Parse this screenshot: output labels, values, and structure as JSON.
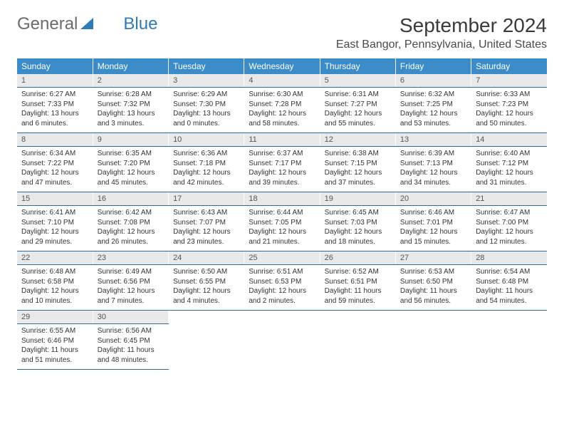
{
  "brand": {
    "part1": "General",
    "part2": "Blue"
  },
  "title": "September 2024",
  "location": "East Bangor, Pennsylvania, United States",
  "colors": {
    "header_bg": "#3b8cc9",
    "header_text": "#ffffff",
    "daynum_bg": "#e9e9e9",
    "daynum_text": "#555555",
    "rule": "#2f6a9b",
    "logo_gray": "#6b6b6b",
    "logo_blue": "#2d7bb8",
    "body_text": "#333333"
  },
  "header_fontsize": 12,
  "daynum_fontsize": 11,
  "detail_fontsize": 10,
  "title_fontsize": 28,
  "location_fontsize": 16,
  "day_headers": [
    "Sunday",
    "Monday",
    "Tuesday",
    "Wednesday",
    "Thursday",
    "Friday",
    "Saturday"
  ],
  "weeks": [
    [
      {
        "n": "1",
        "sr": "Sunrise: 6:27 AM",
        "ss": "Sunset: 7:33 PM",
        "dl": "Daylight: 13 hours and 6 minutes."
      },
      {
        "n": "2",
        "sr": "Sunrise: 6:28 AM",
        "ss": "Sunset: 7:32 PM",
        "dl": "Daylight: 13 hours and 3 minutes."
      },
      {
        "n": "3",
        "sr": "Sunrise: 6:29 AM",
        "ss": "Sunset: 7:30 PM",
        "dl": "Daylight: 13 hours and 0 minutes."
      },
      {
        "n": "4",
        "sr": "Sunrise: 6:30 AM",
        "ss": "Sunset: 7:28 PM",
        "dl": "Daylight: 12 hours and 58 minutes."
      },
      {
        "n": "5",
        "sr": "Sunrise: 6:31 AM",
        "ss": "Sunset: 7:27 PM",
        "dl": "Daylight: 12 hours and 55 minutes."
      },
      {
        "n": "6",
        "sr": "Sunrise: 6:32 AM",
        "ss": "Sunset: 7:25 PM",
        "dl": "Daylight: 12 hours and 53 minutes."
      },
      {
        "n": "7",
        "sr": "Sunrise: 6:33 AM",
        "ss": "Sunset: 7:23 PM",
        "dl": "Daylight: 12 hours and 50 minutes."
      }
    ],
    [
      {
        "n": "8",
        "sr": "Sunrise: 6:34 AM",
        "ss": "Sunset: 7:22 PM",
        "dl": "Daylight: 12 hours and 47 minutes."
      },
      {
        "n": "9",
        "sr": "Sunrise: 6:35 AM",
        "ss": "Sunset: 7:20 PM",
        "dl": "Daylight: 12 hours and 45 minutes."
      },
      {
        "n": "10",
        "sr": "Sunrise: 6:36 AM",
        "ss": "Sunset: 7:18 PM",
        "dl": "Daylight: 12 hours and 42 minutes."
      },
      {
        "n": "11",
        "sr": "Sunrise: 6:37 AM",
        "ss": "Sunset: 7:17 PM",
        "dl": "Daylight: 12 hours and 39 minutes."
      },
      {
        "n": "12",
        "sr": "Sunrise: 6:38 AM",
        "ss": "Sunset: 7:15 PM",
        "dl": "Daylight: 12 hours and 37 minutes."
      },
      {
        "n": "13",
        "sr": "Sunrise: 6:39 AM",
        "ss": "Sunset: 7:13 PM",
        "dl": "Daylight: 12 hours and 34 minutes."
      },
      {
        "n": "14",
        "sr": "Sunrise: 6:40 AM",
        "ss": "Sunset: 7:12 PM",
        "dl": "Daylight: 12 hours and 31 minutes."
      }
    ],
    [
      {
        "n": "15",
        "sr": "Sunrise: 6:41 AM",
        "ss": "Sunset: 7:10 PM",
        "dl": "Daylight: 12 hours and 29 minutes."
      },
      {
        "n": "16",
        "sr": "Sunrise: 6:42 AM",
        "ss": "Sunset: 7:08 PM",
        "dl": "Daylight: 12 hours and 26 minutes."
      },
      {
        "n": "17",
        "sr": "Sunrise: 6:43 AM",
        "ss": "Sunset: 7:07 PM",
        "dl": "Daylight: 12 hours and 23 minutes."
      },
      {
        "n": "18",
        "sr": "Sunrise: 6:44 AM",
        "ss": "Sunset: 7:05 PM",
        "dl": "Daylight: 12 hours and 21 minutes."
      },
      {
        "n": "19",
        "sr": "Sunrise: 6:45 AM",
        "ss": "Sunset: 7:03 PM",
        "dl": "Daylight: 12 hours and 18 minutes."
      },
      {
        "n": "20",
        "sr": "Sunrise: 6:46 AM",
        "ss": "Sunset: 7:01 PM",
        "dl": "Daylight: 12 hours and 15 minutes."
      },
      {
        "n": "21",
        "sr": "Sunrise: 6:47 AM",
        "ss": "Sunset: 7:00 PM",
        "dl": "Daylight: 12 hours and 12 minutes."
      }
    ],
    [
      {
        "n": "22",
        "sr": "Sunrise: 6:48 AM",
        "ss": "Sunset: 6:58 PM",
        "dl": "Daylight: 12 hours and 10 minutes."
      },
      {
        "n": "23",
        "sr": "Sunrise: 6:49 AM",
        "ss": "Sunset: 6:56 PM",
        "dl": "Daylight: 12 hours and 7 minutes."
      },
      {
        "n": "24",
        "sr": "Sunrise: 6:50 AM",
        "ss": "Sunset: 6:55 PM",
        "dl": "Daylight: 12 hours and 4 minutes."
      },
      {
        "n": "25",
        "sr": "Sunrise: 6:51 AM",
        "ss": "Sunset: 6:53 PM",
        "dl": "Daylight: 12 hours and 2 minutes."
      },
      {
        "n": "26",
        "sr": "Sunrise: 6:52 AM",
        "ss": "Sunset: 6:51 PM",
        "dl": "Daylight: 11 hours and 59 minutes."
      },
      {
        "n": "27",
        "sr": "Sunrise: 6:53 AM",
        "ss": "Sunset: 6:50 PM",
        "dl": "Daylight: 11 hours and 56 minutes."
      },
      {
        "n": "28",
        "sr": "Sunrise: 6:54 AM",
        "ss": "Sunset: 6:48 PM",
        "dl": "Daylight: 11 hours and 54 minutes."
      }
    ],
    [
      {
        "n": "29",
        "sr": "Sunrise: 6:55 AM",
        "ss": "Sunset: 6:46 PM",
        "dl": "Daylight: 11 hours and 51 minutes."
      },
      {
        "n": "30",
        "sr": "Sunrise: 6:56 AM",
        "ss": "Sunset: 6:45 PM",
        "dl": "Daylight: 11 hours and 48 minutes."
      },
      null,
      null,
      null,
      null,
      null
    ]
  ]
}
